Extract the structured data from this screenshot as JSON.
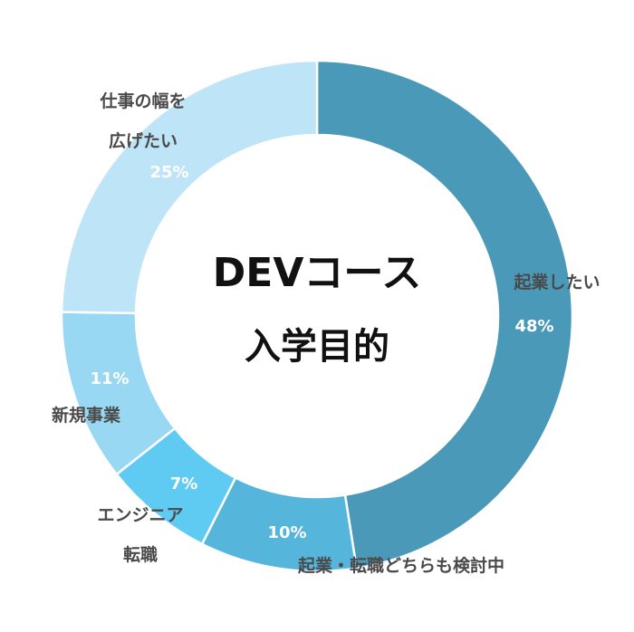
{
  "chart_data": {
    "type": "pie",
    "title": "DEVコース",
    "subtitle": "入学目的",
    "categories": [
      "起業したい",
      "起業・転職どちらも検討中",
      "エンジニア転職",
      "新規事業",
      "仕事の幅を広げたい"
    ],
    "values": [
      48,
      10,
      7,
      11,
      25
    ],
    "value_labels": [
      "48%",
      "10%",
      "7%",
      "11%",
      "25%"
    ],
    "label_lines": [
      [
        "起業したい"
      ],
      [
        "起業・転職どちらも検討中"
      ],
      [
        "エンジニア",
        "転職"
      ],
      [
        "新規事業"
      ],
      [
        "仕事の幅を",
        "広げたい"
      ]
    ],
    "colors": [
      "#4a99b9",
      "#55b5db",
      "#60cbf2",
      "#98d8f2",
      "#bee4f8"
    ],
    "style": "donut",
    "direction": "clockwise",
    "start": "top",
    "legend": "none"
  }
}
